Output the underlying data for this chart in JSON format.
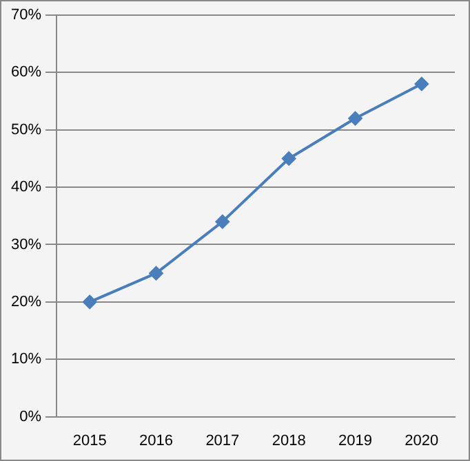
{
  "chart_data": {
    "type": "line",
    "categories": [
      "2015",
      "2016",
      "2017",
      "2018",
      "2019",
      "2020"
    ],
    "series": [
      {
        "color": "#4a7ebb",
        "values": [
          20,
          25,
          34,
          45,
          52,
          58
        ]
      }
    ],
    "ylim": [
      0,
      70
    ],
    "yticks": [
      {
        "value": 0,
        "label": "0%"
      },
      {
        "value": 10,
        "label": "10%"
      },
      {
        "value": 20,
        "label": "20%"
      },
      {
        "value": 30,
        "label": "30%"
      },
      {
        "value": 40,
        "label": "40%"
      },
      {
        "value": 50,
        "label": "50%"
      },
      {
        "value": 60,
        "label": "60%"
      },
      {
        "value": 70,
        "label": "70%"
      }
    ],
    "grid": "y",
    "legend": false,
    "marker": "diamond",
    "line_style": "solid"
  }
}
